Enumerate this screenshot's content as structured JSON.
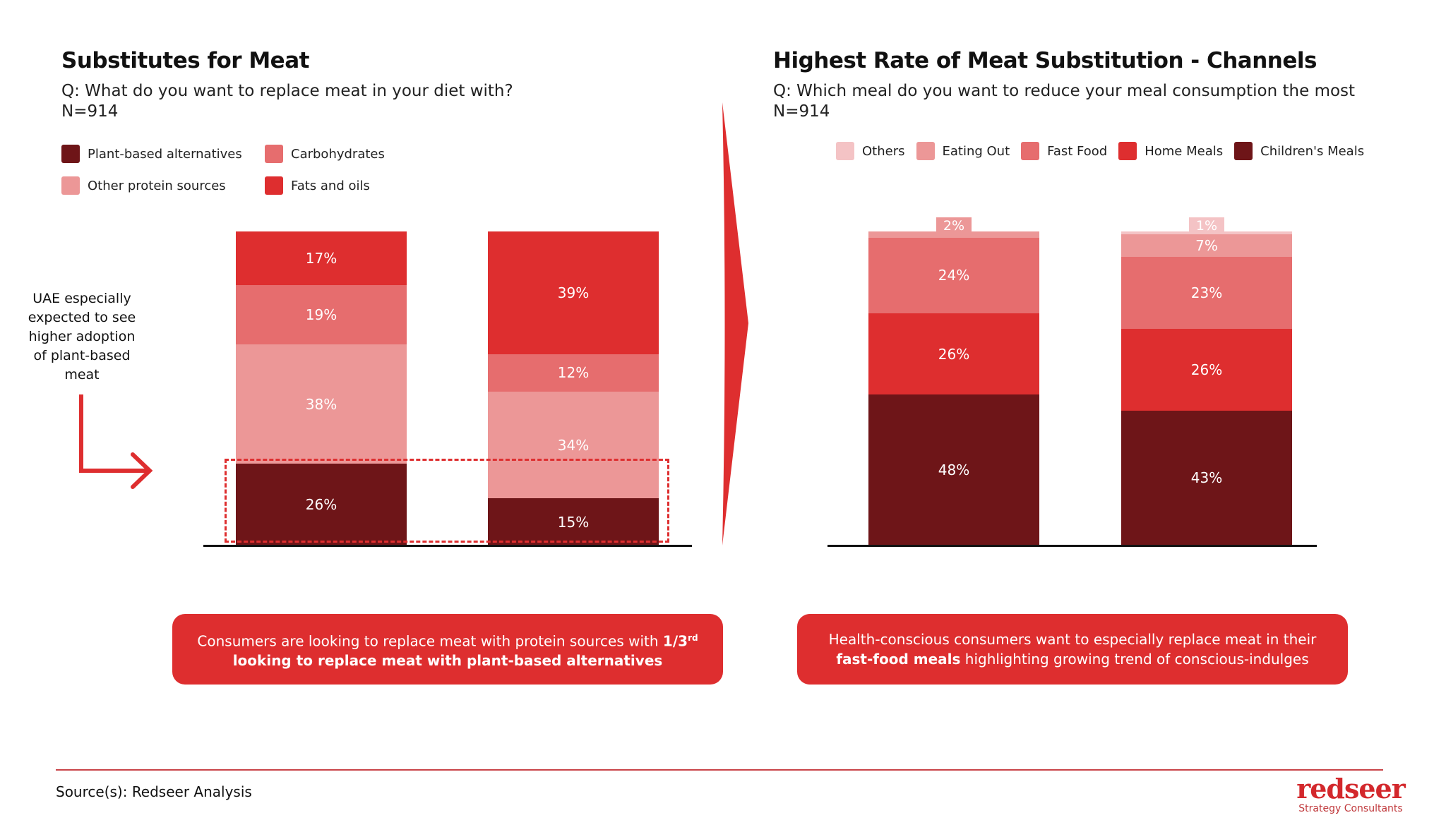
{
  "colors": {
    "dark": "#6e1518",
    "red": "#de2e2f",
    "mid": "#e66d6e",
    "light": "#ec9797",
    "pale": "#f4c3c5",
    "accent": "#de2e2f"
  },
  "left": {
    "title": "Substitutes for Meat",
    "question": "Q: What do you want to replace meat in your diet with?",
    "n": "N=914",
    "annotation": [
      "UAE especially",
      "expected to see",
      "higher adoption",
      "of plant-based",
      "meat"
    ],
    "callout": {
      "line1": "Consumers are looking to replace meat with protein sources with ",
      "bold1": "1/3",
      "sup": "rd",
      "bold2": "looking to replace meat with plant-based alternatives"
    }
  },
  "right": {
    "title": "Highest Rate of Meat Substitution - Channels",
    "question": "Q: Which meal do you want to reduce your meal consumption the most",
    "n": "N=914",
    "callout": {
      "line1": "Health-conscious consumers want to especially replace meat in their",
      "bold": "fast-food meals",
      "rest": " highlighting growing trend of conscious-indulges"
    }
  },
  "chart_data": [
    {
      "type": "bar",
      "stacked": true,
      "categories": [
        "",
        ""
      ],
      "ylim": [
        0,
        100
      ],
      "legend": [
        "Plant-based alternatives",
        "Carbohydrates",
        "Other protein sources",
        "Fats and oils"
      ],
      "series": [
        {
          "name": "Plant-based alternatives",
          "color": "#6e1518",
          "values": [
            26,
            15
          ]
        },
        {
          "name": "Other protein sources",
          "color": "#ec9797",
          "values": [
            38,
            34
          ]
        },
        {
          "name": "Carbohydrates",
          "color": "#e66d6e",
          "values": [
            19,
            12
          ]
        },
        {
          "name": "Fats and oils",
          "color": "#de2e2f",
          "values": [
            17,
            39
          ]
        }
      ]
    },
    {
      "type": "bar",
      "stacked": true,
      "categories": [
        "",
        ""
      ],
      "ylim": [
        0,
        100
      ],
      "legend": [
        "Others",
        "Eating Out",
        "Fast Food",
        "Home Meals",
        "Children's Meals"
      ],
      "series": [
        {
          "name": "Children's Meals",
          "color": "#6e1518",
          "values": [
            48,
            43
          ]
        },
        {
          "name": "Home Meals",
          "color": "#de2e2f",
          "values": [
            26,
            26
          ]
        },
        {
          "name": "Fast Food",
          "color": "#e66d6e",
          "values": [
            24,
            23
          ]
        },
        {
          "name": "Eating Out",
          "color": "#ec9797",
          "values": [
            2,
            7
          ]
        },
        {
          "name": "Others",
          "color": "#f4c3c5",
          "values": [
            null,
            1
          ]
        }
      ]
    }
  ],
  "footer": {
    "source": "Source(s): Redseer Analysis",
    "logo": "redseer",
    "logo_sub": "Strategy Consultants"
  }
}
